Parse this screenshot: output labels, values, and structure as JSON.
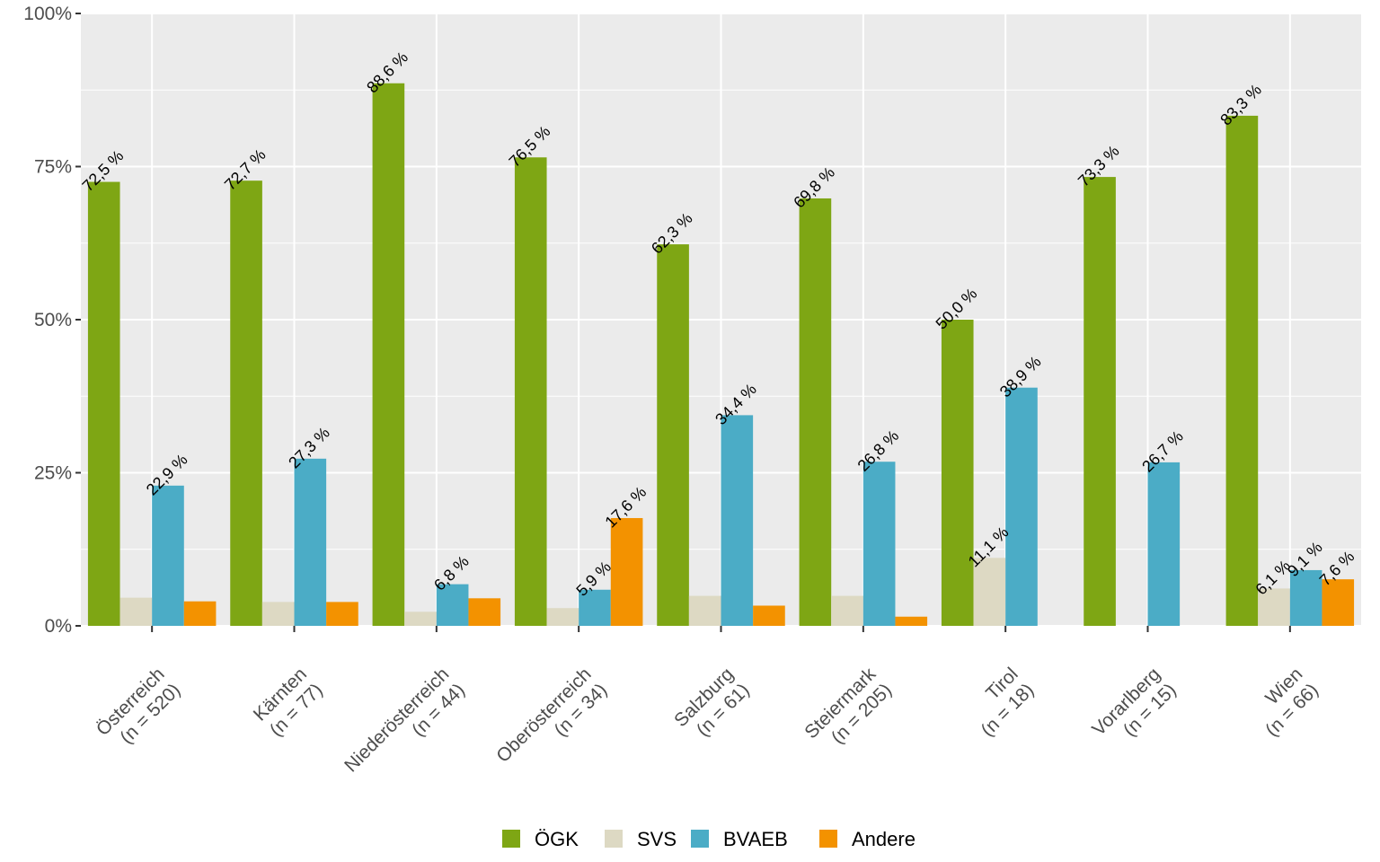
{
  "chart_data": {
    "type": "bar",
    "title": "",
    "xlabel": "",
    "ylabel": "",
    "ylim": [
      0,
      100
    ],
    "y_ticks": [
      "0%",
      "25%",
      "50%",
      "75%",
      "100%"
    ],
    "grid": true,
    "legend_position": "bottom",
    "categories": [
      [
        "Österreich",
        "(n = 520)"
      ],
      [
        "Kärnten",
        "(n = 77)"
      ],
      [
        "Niederösterreich",
        "(n = 44)"
      ],
      [
        "Oberösterreich",
        "(n = 34)"
      ],
      [
        "Salzburg",
        "(n = 61)"
      ],
      [
        "Steiermark",
        "(n = 205)"
      ],
      [
        "Tirol",
        "(n = 18)"
      ],
      [
        "Vorarlberg",
        "(n = 15)"
      ],
      [
        "Wien",
        "(n = 66)"
      ]
    ],
    "series": [
      {
        "name": "ÖGK",
        "color": "#7ea614",
        "values": [
          72.5,
          72.7,
          88.6,
          76.5,
          62.3,
          69.8,
          50.0,
          73.3,
          83.3
        ],
        "labels": [
          "72,5 %",
          "72,7 %",
          "88,6 %",
          "76,5 %",
          "62,3 %",
          "69,8 %",
          "50,0 %",
          "73,3 %",
          "83,3 %"
        ]
      },
      {
        "name": "SVS",
        "color": "#ddd9c3",
        "values": [
          4.6,
          3.9,
          2.3,
          2.9,
          4.9,
          4.9,
          11.1,
          0,
          6.1
        ],
        "labels": [
          "",
          "",
          "",
          "",
          "",
          "",
          "11,1 %",
          "",
          "6,1 %"
        ]
      },
      {
        "name": "BVAEB",
        "color": "#4bacc6",
        "values": [
          22.9,
          27.3,
          6.8,
          5.9,
          34.4,
          26.8,
          38.9,
          26.7,
          9.1
        ],
        "labels": [
          "22,9 %",
          "27,3 %",
          "6,8 %",
          "5,9 %",
          "34,4 %",
          "26,8 %",
          "38,9 %",
          "26,7 %",
          "9,1 %"
        ]
      },
      {
        "name": "Andere",
        "color": "#f39200",
        "values": [
          4.0,
          3.9,
          4.5,
          17.6,
          3.3,
          1.5,
          0,
          0,
          7.6
        ],
        "labels": [
          "",
          "",
          "",
          "17,6 %",
          "",
          "",
          "",
          "",
          "7,6 %"
        ]
      }
    ]
  },
  "legend": {
    "items": [
      {
        "label": "ÖGK",
        "color": "#7ea614"
      },
      {
        "label": "SVS",
        "color": "#ddd9c3"
      },
      {
        "label": "BVAEB",
        "color": "#4bacc6"
      },
      {
        "label": "Andere",
        "color": "#f39200"
      }
    ]
  }
}
